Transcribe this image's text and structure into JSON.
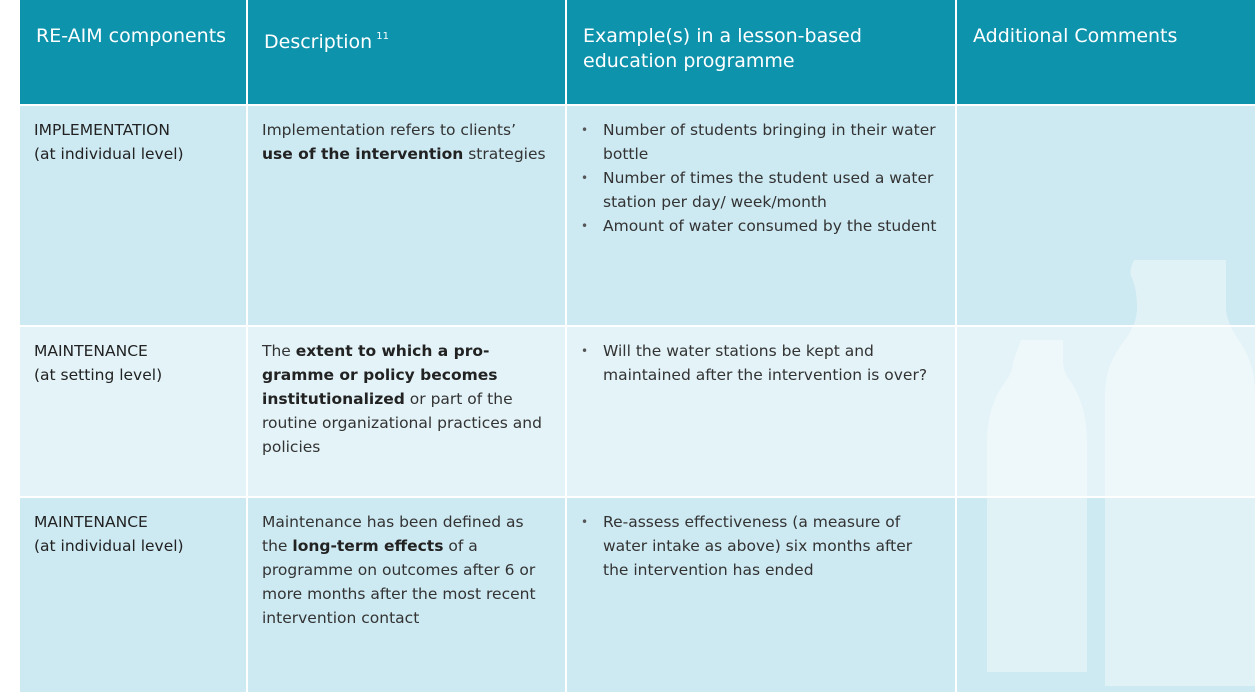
{
  "table": {
    "header": [
      {
        "text": "RE-AIM components"
      },
      {
        "text": "Description",
        "note": "11"
      },
      {
        "text": "Example(s) in a lesson-based education programme"
      },
      {
        "text": "Additional Comments"
      }
    ],
    "rows": [
      {
        "component": "IMPLEMENTATION",
        "level": "(at individual level)",
        "description": [
          {
            "text": "Implementation refers to clients’ "
          },
          {
            "text": "use of the interven­tion",
            "bold": true
          },
          {
            "text": " strategies"
          }
        ],
        "examples": [
          "Number of students bringing in their water bottle",
          "Number of times the student used a water station per day/ week/month",
          "Amount of water consumed by the student"
        ]
      },
      {
        "component": "MAINTENANCE",
        "level": "(at setting level)",
        "description": [
          {
            "text": "The "
          },
          {
            "text": "extent to which a pro­gramme or policy becomes institutionalized",
            "bold": true
          },
          {
            "text": " or part of the routine organizational practices and policies"
          }
        ],
        "examples": [
          "Will the water stations be kept and maintained after the inter­vention is over?"
        ]
      },
      {
        "component": "MAINTENANCE",
        "level": "(at individual level)",
        "description": [
          {
            "text": "Maintenance has been defined as the "
          },
          {
            "text": "long-term effects",
            "bold": true
          },
          {
            "text": " of a programme on outcomes after 6 or more months after the most re­cent intervention contact"
          }
        ],
        "examples": [
          "Re-assess effectiveness (a mea­sure of water intake as above) six months after the intervention has ended"
        ]
      }
    ]
  }
}
